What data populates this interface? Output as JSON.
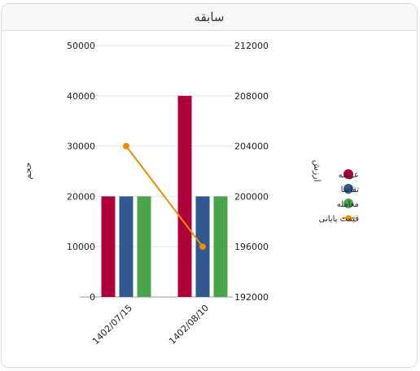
{
  "header": {
    "title": "سابقه"
  },
  "chart_data": {
    "type": "bar",
    "categories": [
      "1402/07/15",
      "1402/08/10"
    ],
    "series": [
      {
        "name": "عرضه",
        "type": "bar",
        "axis": "left",
        "color": "#b0003a",
        "values": [
          20000,
          40000
        ]
      },
      {
        "name": "تقاضا",
        "type": "bar",
        "axis": "left",
        "color": "#2f5990",
        "values": [
          20000,
          20000
        ]
      },
      {
        "name": "معامله",
        "type": "bar",
        "axis": "left",
        "color": "#4aa54a",
        "values": [
          20000,
          20000
        ]
      },
      {
        "name": "قیمت پایانی",
        "type": "line",
        "axis": "right",
        "color": "#f08c00",
        "values": [
          204000,
          196000
        ]
      }
    ],
    "left_axis": {
      "title": "حجم",
      "min": 0,
      "max": 50000,
      "ticks": [
        0,
        10000,
        20000,
        30000,
        40000,
        50000
      ]
    },
    "right_axis": {
      "title": "ارزش",
      "min": 192000,
      "max": 212000,
      "ticks": [
        192000,
        196000,
        200000,
        204000,
        208000,
        212000
      ]
    },
    "grid": true,
    "legend": "right"
  }
}
